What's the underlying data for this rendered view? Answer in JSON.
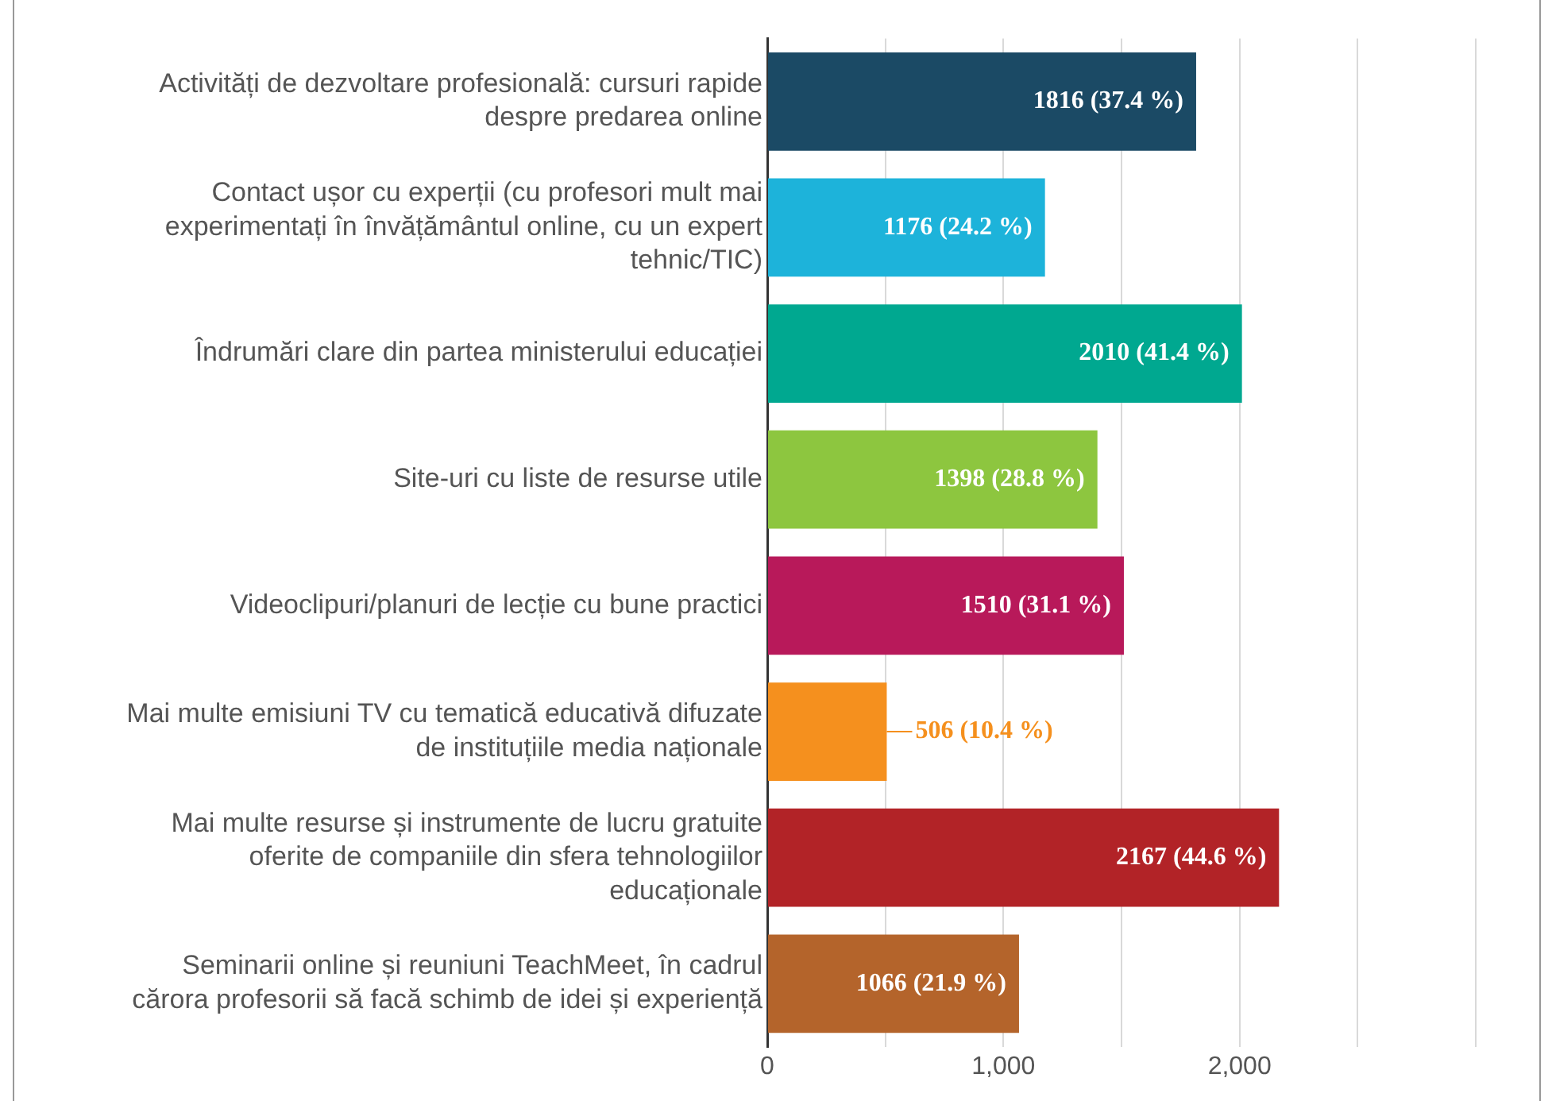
{
  "chart_data": {
    "type": "bar",
    "orientation": "horizontal",
    "categories": [
      "Activități de dezvoltare profesională: cursuri rapide despre predarea online",
      "Contact ușor cu experții (cu profesori mult mai experimentați în învățământul online, cu un expert tehnic/TIC)",
      "Îndrumări clare din partea ministerului educației",
      "Site-uri cu liste de resurse utile",
      "Videoclipuri/planuri de lecție cu bune practici",
      "Mai multe emisiuni TV cu tematică educativă difuzate de instituțiile media naționale",
      "Mai multe resurse și instrumente de lucru gratuite oferite de companiile din sfera tehnologiilor educaționale",
      "Seminarii online și reuniuni TeachMeet, în cadrul cărora profesorii să facă schimb de idei și experiență"
    ],
    "values": [
      1816,
      1176,
      2010,
      1398,
      1510,
      506,
      2167,
      1066
    ],
    "colors": [
      "#1b4a65",
      "#1db3da",
      "#00a890",
      "#8dc63f",
      "#b8195a",
      "#f5901e",
      "#b22327",
      "#b4642b"
    ],
    "value_labels": [
      "1816 (37.4 %)",
      "1176 (24.2 %)",
      "2010 (41.4 %)",
      "1398 (28.8 %)",
      "1510 (31.1 %)",
      "506 (10.4 %)",
      "2167 (44.6 %)",
      "1066 (21.9 %)"
    ],
    "xlim": [
      0,
      3000
    ],
    "xticks": [
      {
        "value": 0,
        "label": "0"
      },
      {
        "value": 500,
        "label": null
      },
      {
        "value": 1000,
        "label": "1,000"
      },
      {
        "value": 1500,
        "label": null
      },
      {
        "value": 2000,
        "label": "2,000"
      },
      {
        "value": 2500,
        "label": null
      },
      {
        "value": 3000,
        "label": null
      }
    ],
    "grid": "x",
    "legend": false
  }
}
